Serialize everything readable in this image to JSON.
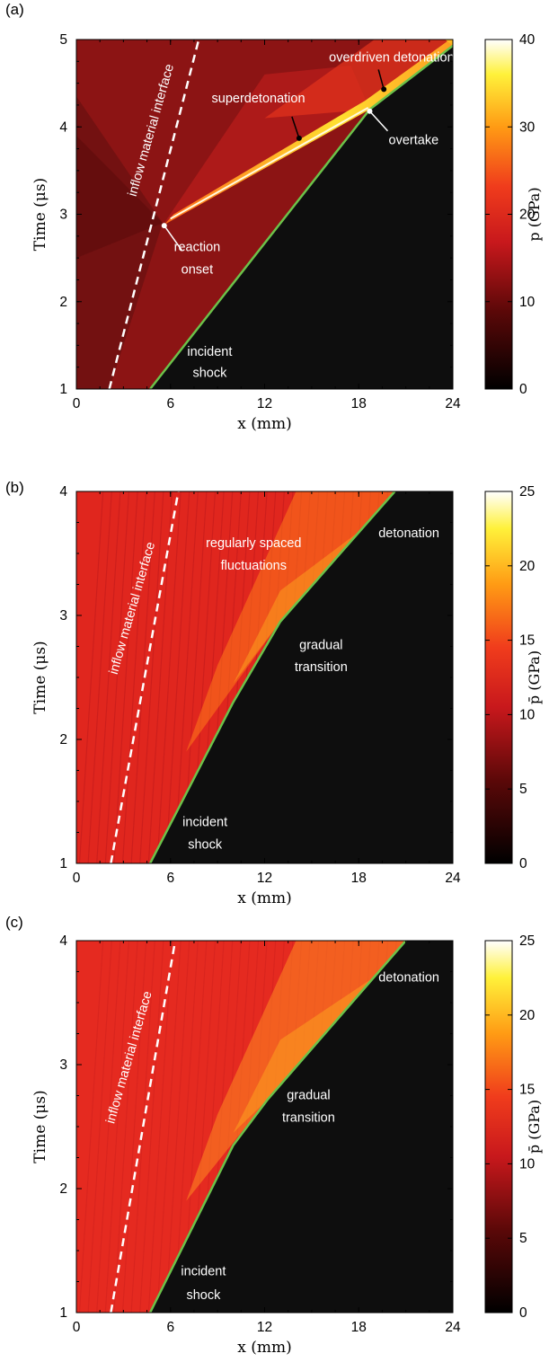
{
  "colors": {
    "shock_line": "#6cc24a",
    "interface_line": "#ffffff",
    "annotation_text": "#ffffff",
    "shocked_region": "#0e0e0e"
  },
  "chart_data": [
    {
      "panel": "(a)",
      "type": "heatmap",
      "xlabel": "x (mm)",
      "ylabel": "Time (μs)",
      "xlim": [
        0,
        24
      ],
      "ylim": [
        1,
        5
      ],
      "xticks": [
        "0",
        "6",
        "12",
        "18",
        "24"
      ],
      "yticks": [
        "1",
        "2",
        "3",
        "4",
        "5"
      ],
      "colorbar": {
        "label": "p (GPa)",
        "min": 0,
        "max": 40,
        "ticks": [
          "0",
          "10",
          "20",
          "30",
          "40"
        ]
      },
      "lines": {
        "incident_shock": [
          [
            4.7,
            1.0
          ],
          [
            18.7,
            4.2
          ],
          [
            24.0,
            4.93
          ]
        ],
        "inflow_interface": [
          [
            2.1,
            1.0
          ],
          [
            7.8,
            5.0
          ]
        ]
      },
      "annotations": [
        {
          "text": "inflow material interface",
          "x": 5.0,
          "y": 3.95,
          "rotation": -74
        },
        {
          "text": "overdriven detonation",
          "x": 20.1,
          "y": 4.75
        },
        {
          "text": "superdetonation",
          "x": 11.6,
          "y": 4.28
        },
        {
          "text": "overtake",
          "x": 21.5,
          "y": 3.8
        },
        {
          "text": "reaction",
          "x": 7.7,
          "y": 2.58
        },
        {
          "text": "onset",
          "x": 7.7,
          "y": 2.32
        },
        {
          "text": "incident",
          "x": 8.5,
          "y": 1.38
        },
        {
          "text": "shock",
          "x": 8.5,
          "y": 1.14
        }
      ],
      "markers": [
        {
          "label": "reaction onset",
          "x": 5.6,
          "y": 2.87
        },
        {
          "label": "superdetonation",
          "x": 14.2,
          "y": 3.87
        },
        {
          "label": "overdriven detonation",
          "x": 19.6,
          "y": 4.43
        },
        {
          "label": "overtake",
          "x": 18.7,
          "y": 4.18
        }
      ]
    },
    {
      "panel": "(b)",
      "type": "heatmap",
      "xlabel": "x (mm)",
      "ylabel": "Time (μs)",
      "xlim": [
        0,
        24
      ],
      "ylim": [
        1,
        4
      ],
      "xticks": [
        "0",
        "6",
        "12",
        "18",
        "24"
      ],
      "yticks": [
        "1",
        "2",
        "3",
        "4"
      ],
      "colorbar": {
        "label": "p̄ (GPa)",
        "min": 0,
        "max": 25,
        "ticks": [
          "0",
          "5",
          "10",
          "15",
          "20",
          "25"
        ]
      },
      "lines": {
        "incident_shock": [
          [
            4.7,
            1.0
          ],
          [
            10.0,
            2.3
          ],
          [
            13.0,
            2.95
          ],
          [
            20.3,
            4.0
          ]
        ],
        "inflow_interface": [
          [
            2.2,
            1.0
          ],
          [
            6.5,
            4.0
          ]
        ]
      },
      "annotations": [
        {
          "text": "inflow material interface",
          "x": 3.8,
          "y": 3.05,
          "rotation": -74
        },
        {
          "text": "regularly spaced",
          "x": 11.3,
          "y": 3.55
        },
        {
          "text": "fluctuations",
          "x": 11.3,
          "y": 3.37
        },
        {
          "text": "detonation",
          "x": 21.2,
          "y": 3.63
        },
        {
          "text": "gradual",
          "x": 15.6,
          "y": 2.73
        },
        {
          "text": "transition",
          "x": 15.6,
          "y": 2.55
        },
        {
          "text": "incident",
          "x": 8.2,
          "y": 1.3
        },
        {
          "text": "shock",
          "x": 8.2,
          "y": 1.12
        }
      ]
    },
    {
      "panel": "(c)",
      "type": "heatmap",
      "xlabel": "x (mm)",
      "ylabel": "Time (μs)",
      "xlim": [
        0,
        24
      ],
      "ylim": [
        1,
        4
      ],
      "xticks": [
        "0",
        "6",
        "12",
        "18",
        "24"
      ],
      "yticks": [
        "1",
        "2",
        "3",
        "4"
      ],
      "colorbar": {
        "label": "p̄ (GPa)",
        "min": 0,
        "max": 25,
        "ticks": [
          "0",
          "5",
          "10",
          "15",
          "20",
          "25"
        ]
      },
      "lines": {
        "incident_shock": [
          [
            4.7,
            1.0
          ],
          [
            10.0,
            2.35
          ],
          [
            12.2,
            2.72
          ],
          [
            21.0,
            4.0
          ]
        ],
        "inflow_interface": [
          [
            2.2,
            1.0
          ],
          [
            6.3,
            4.0
          ]
        ]
      },
      "annotations": [
        {
          "text": "inflow material interface",
          "x": 3.6,
          "y": 3.05,
          "rotation": -74
        },
        {
          "text": "detonation",
          "x": 21.2,
          "y": 3.67
        },
        {
          "text": "gradual",
          "x": 14.8,
          "y": 2.72
        },
        {
          "text": "transition",
          "x": 14.8,
          "y": 2.54
        },
        {
          "text": "incident",
          "x": 8.1,
          "y": 1.3
        },
        {
          "text": "shock",
          "x": 8.1,
          "y": 1.11
        }
      ]
    }
  ]
}
